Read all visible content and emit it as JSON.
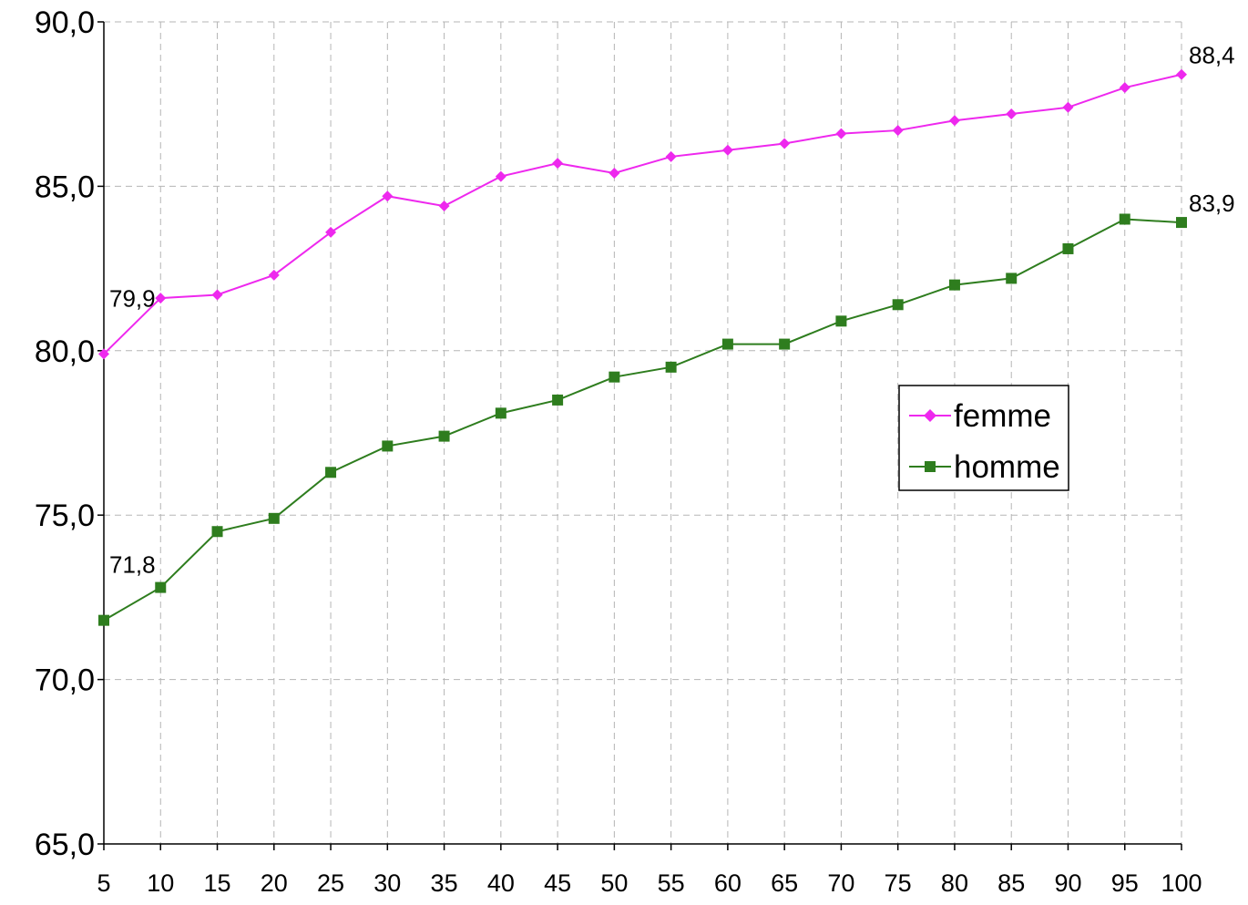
{
  "chart_data": {
    "type": "line",
    "title": "",
    "xlabel": "",
    "ylabel": "",
    "x": [
      5,
      10,
      15,
      20,
      25,
      30,
      35,
      40,
      45,
      50,
      55,
      60,
      65,
      70,
      75,
      80,
      85,
      90,
      95,
      100
    ],
    "ylim": [
      65,
      90
    ],
    "yticks": [
      "65,0",
      "70,0",
      "75,0",
      "80,0",
      "85,0",
      "90,0"
    ],
    "ytick_values": [
      65,
      70,
      75,
      80,
      85,
      90
    ],
    "xticks": [
      "5",
      "10",
      "15",
      "20",
      "25",
      "30",
      "35",
      "40",
      "45",
      "50",
      "55",
      "60",
      "65",
      "70",
      "75",
      "80",
      "85",
      "90",
      "95",
      "100"
    ],
    "grid": true,
    "legend_position": "right-center",
    "series": [
      {
        "name": "femme",
        "color": "#ee28ee",
        "marker": "diamond",
        "values": [
          79.9,
          81.6,
          81.7,
          82.3,
          83.6,
          84.7,
          84.4,
          85.3,
          85.7,
          85.4,
          85.9,
          86.1,
          86.3,
          86.6,
          86.7,
          87.0,
          87.2,
          87.4,
          88.0,
          88.4
        ],
        "labels": [
          {
            "index": 0,
            "text": "79,9"
          },
          {
            "index": 19,
            "text": "88,4"
          }
        ]
      },
      {
        "name": "homme",
        "color": "#2e7d1e",
        "marker": "square",
        "values": [
          71.8,
          72.8,
          74.5,
          74.9,
          76.3,
          77.1,
          77.4,
          78.1,
          78.5,
          79.2,
          79.5,
          80.2,
          80.2,
          80.9,
          81.4,
          82.0,
          82.2,
          83.1,
          84.0,
          83.9
        ],
        "labels": [
          {
            "index": 0,
            "text": "71,8"
          },
          {
            "index": 19,
            "text": "83,9"
          }
        ]
      }
    ]
  }
}
